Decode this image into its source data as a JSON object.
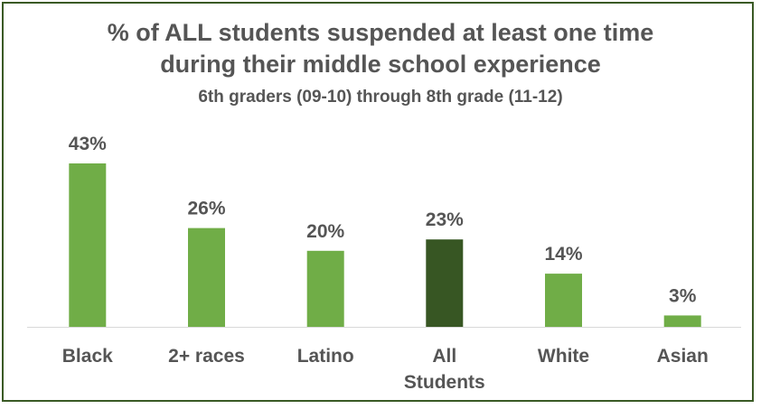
{
  "chart_data": {
    "type": "bar",
    "title_line1": "% of ALL students suspended at least one time",
    "title_line2": "during their middle school experience",
    "subtitle": "6th graders (09-10) through 8th grade (11-12)",
    "categories": [
      "Black",
      "2+ races",
      "Latino",
      "All Students",
      "White",
      "Asian"
    ],
    "category_lines": [
      [
        "Black"
      ],
      [
        "2+ races"
      ],
      [
        "Latino"
      ],
      [
        "All",
        "Students"
      ],
      [
        "White"
      ],
      [
        "Asian"
      ]
    ],
    "values": [
      43,
      26,
      20,
      23,
      14,
      3
    ],
    "value_labels": [
      "43%",
      "26%",
      "20%",
      "23%",
      "14%",
      "3%"
    ],
    "highlight_category": "All Students",
    "ylim": [
      0,
      45
    ],
    "grid": false,
    "legend": "none",
    "colors": {
      "bar": "#70ad47",
      "highlight_bar": "#375623",
      "text": "#555555",
      "axis": "#d9d9d9",
      "border": "#3a5a25"
    }
  }
}
